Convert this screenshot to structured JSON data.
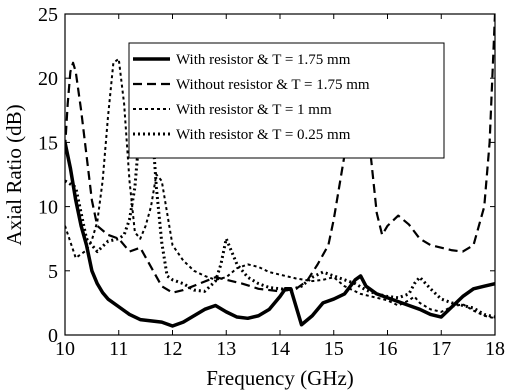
{
  "chart_data": {
    "type": "line",
    "xlabel": "Frequency (GHz)",
    "ylabel": "Axial Ratio (dB)",
    "xlim": [
      10,
      18
    ],
    "ylim": [
      0,
      25
    ],
    "xticks": [
      10,
      11,
      12,
      13,
      14,
      15,
      16,
      17,
      18
    ],
    "yticks": [
      0,
      5,
      10,
      15,
      20,
      25
    ],
    "grid": false,
    "legend_position": "top-center",
    "series": [
      {
        "name": "With resistor & T = 1.75 mm",
        "line_style": "solid",
        "line_weight": "thick",
        "x": [
          10,
          10.1,
          10.2,
          10.3,
          10.4,
          10.5,
          10.6,
          10.7,
          10.8,
          11,
          11.2,
          11.4,
          11.6,
          11.8,
          12,
          12.2,
          12.4,
          12.6,
          12.8,
          13,
          13.2,
          13.4,
          13.6,
          13.8,
          14,
          14.1,
          14.2,
          14.4,
          14.6,
          14.8,
          15,
          15.2,
          15.4,
          15.5,
          15.6,
          15.8,
          16,
          16.2,
          16.4,
          16.6,
          16.8,
          17,
          17.2,
          17.4,
          17.6,
          17.8,
          18
        ],
        "y": [
          15,
          13,
          10.5,
          8.5,
          7,
          5,
          4,
          3.3,
          2.8,
          2.2,
          1.6,
          1.2,
          1.1,
          1.0,
          0.7,
          1.0,
          1.5,
          2,
          2.3,
          1.8,
          1.4,
          1.3,
          1.5,
          2.0,
          3.0,
          3.6,
          3.6,
          0.8,
          1.5,
          2.5,
          2.8,
          3.2,
          4.3,
          4.6,
          3.8,
          3.2,
          2.9,
          2.6,
          2.3,
          2.0,
          1.6,
          1.4,
          2.2,
          3.0,
          3.6,
          3.8,
          4.0
        ]
      },
      {
        "name": "Without resistor & T = 1.75 mm",
        "line_style": "dashed",
        "line_weight": "normal",
        "x": [
          10,
          10.05,
          10.1,
          10.15,
          10.2,
          10.3,
          10.4,
          10.5,
          10.6,
          10.8,
          11,
          11.2,
          11.4,
          11.6,
          11.8,
          12,
          12.2,
          12.5,
          12.8,
          13,
          13.3,
          13.6,
          14,
          14.3,
          14.5,
          14.7,
          14.9,
          15,
          15.1,
          15.2,
          15.3,
          15.4,
          15.5,
          15.6,
          15.7,
          15.8,
          15.9,
          16,
          16.2,
          16.4,
          16.6,
          16.8,
          17,
          17.2,
          17.4,
          17.6,
          17.8,
          17.9,
          18
        ],
        "y": [
          14.5,
          18,
          20.5,
          21.2,
          20.5,
          17.5,
          14,
          10.5,
          8.5,
          7.8,
          7.5,
          6.5,
          6.8,
          5.3,
          3.8,
          3.3,
          3.5,
          4.0,
          4.5,
          4.3,
          4.0,
          3.6,
          3.4,
          3.6,
          4.2,
          5.5,
          7.0,
          9.0,
          11.5,
          14,
          17,
          18.5,
          19.0,
          17.5,
          13.5,
          9.5,
          7.8,
          8.5,
          9.3,
          8.6,
          7.5,
          7.0,
          6.8,
          6.6,
          6.5,
          7.0,
          10,
          15,
          25
        ]
      },
      {
        "name": "With resistor & T = 1 mm",
        "line_style": "dotted",
        "line_weight": "normal",
        "x": [
          10,
          10.2,
          10.4,
          10.5,
          10.6,
          10.7,
          10.8,
          10.9,
          11,
          11.1,
          11.2,
          11.3,
          11.4,
          11.5,
          11.6,
          11.7,
          11.8,
          11.9,
          12,
          12.2,
          12.4,
          12.6,
          12.8,
          13,
          13.2,
          13.4,
          13.6,
          13.8,
          14,
          14.3,
          14.6,
          14.8,
          15,
          15.2,
          15.5,
          15.8,
          16,
          16.2,
          16.4,
          16.5,
          16.6,
          16.8,
          17,
          17.2,
          17.4,
          17.6,
          17.8,
          18
        ],
        "y": [
          8.5,
          6.0,
          6.6,
          7.4,
          8.8,
          12,
          17,
          21.2,
          21.5,
          18,
          12,
          8,
          7.5,
          8.5,
          10,
          12.5,
          12,
          9.5,
          7,
          5.8,
          5.0,
          4.6,
          4.3,
          4.5,
          5.2,
          5.5,
          5.3,
          4.9,
          4.7,
          4.4,
          4.2,
          4.3,
          4.5,
          3.8,
          3.2,
          2.9,
          2.7,
          2.3,
          2.7,
          3.0,
          2.5,
          2.0,
          1.8,
          2.2,
          2.4,
          1.9,
          1.5,
          1.3
        ]
      },
      {
        "name": "With resistor & T = 0.25 mm",
        "line_style": "dotted",
        "line_weight": "thick",
        "x": [
          10,
          10.2,
          10.4,
          10.6,
          10.8,
          11,
          11.1,
          11.2,
          11.3,
          11.4,
          11.5,
          11.6,
          11.7,
          11.8,
          11.9,
          12,
          12.2,
          12.4,
          12.6,
          12.8,
          12.9,
          13,
          13.1,
          13.2,
          13.4,
          13.6,
          13.8,
          14,
          14.2,
          14.4,
          14.6,
          14.8,
          15,
          15.2,
          15.4,
          15.6,
          15.8,
          16,
          16.2,
          16.4,
          16.5,
          16.6,
          16.8,
          17,
          17.2,
          17.4,
          17.6,
          17.8,
          18
        ],
        "y": [
          12,
          11.5,
          7.5,
          6.5,
          7.3,
          7.5,
          7.8,
          9.0,
          11.5,
          16.5,
          20.5,
          17.5,
          11.5,
          7.2,
          4.6,
          4.3,
          4.0,
          3.5,
          3.4,
          4.2,
          5.5,
          7.5,
          6.5,
          5.5,
          4.5,
          4.0,
          3.7,
          3.6,
          3.5,
          3.8,
          4.5,
          4.9,
          4.6,
          4.3,
          4.0,
          3.5,
          3.2,
          3.0,
          2.9,
          3.2,
          4.0,
          4.5,
          3.6,
          2.8,
          2.5,
          2.3,
          2.1,
          1.6,
          1.4
        ]
      }
    ]
  }
}
